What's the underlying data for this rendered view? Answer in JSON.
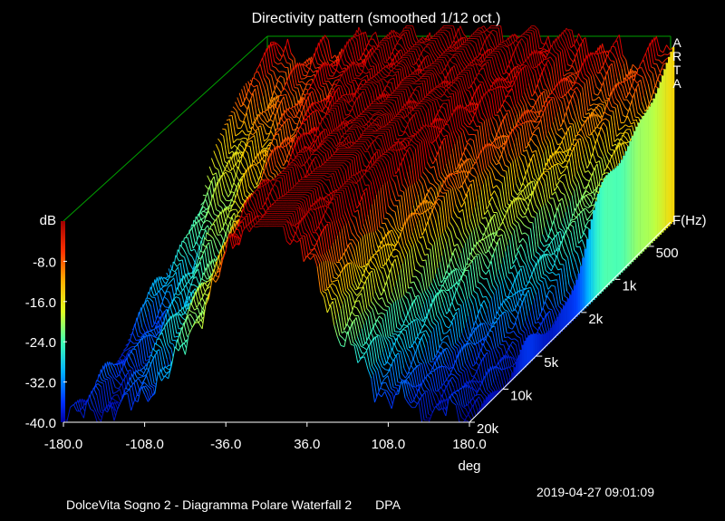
{
  "chart_data": {
    "type": "waterfall",
    "title": "Directivity pattern (smoothed 1/12 oct.)",
    "brand": [
      "A",
      "R",
      "T",
      "A"
    ],
    "xlabel": "deg",
    "zlabel": "dB",
    "ylabel": "F(Hz)",
    "x_ticks": [
      "-180.0",
      "-108.0",
      "-36.0",
      "36.0",
      "108.0",
      "180.0"
    ],
    "x_range": [
      -180,
      180
    ],
    "z_ticks": [
      "-8.0",
      "-16.0",
      "-24.0",
      "-32.0",
      "-40.0"
    ],
    "z_range": [
      -40,
      0
    ],
    "freq_ticks": [
      "500",
      "1k",
      "2k",
      "5k",
      "10k",
      "20k"
    ],
    "freq_range_hz": [
      300,
      20000
    ],
    "colormap": [
      "#0000b0",
      "#0040ff",
      "#00c0ff",
      "#40ffc0",
      "#c0ff40",
      "#ffd000",
      "#ff6000",
      "#e00000",
      "#900000"
    ],
    "frame_color": "#00a000"
  },
  "footer": {
    "datetime": "2019-04-27  09:01:09",
    "description": "DolceVita Sogno 2 - Diagramma Polare Waterfall 2",
    "tag": "DPA"
  }
}
